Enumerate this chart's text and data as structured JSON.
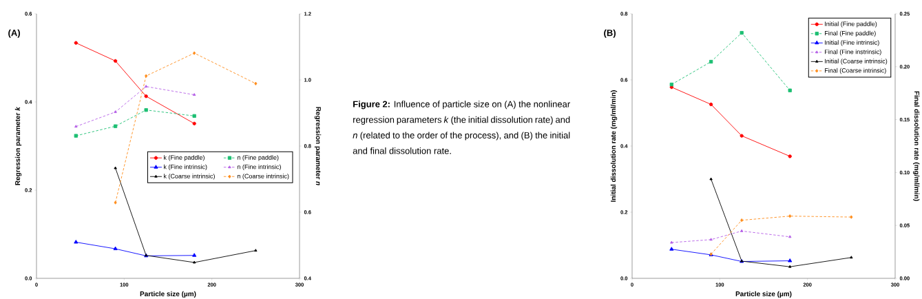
{
  "chart_data": [
    {
      "type": "line",
      "annotations": [
        "(A)"
      ],
      "xlabel": "Particle size (µm)",
      "ylabel": "Regression parameter *k*",
      "y2label": "Regression parameter *n*",
      "xlim": [
        0,
        300
      ],
      "xticks": [
        0,
        100,
        200,
        300
      ],
      "ylim": [
        0,
        0.6
      ],
      "yticks": [
        {
          "value": 0,
          "label": "0.0"
        },
        {
          "value": 0.2,
          "label": "0.2"
        },
        {
          "value": 0.4,
          "label": "0.4"
        },
        {
          "value": 0.6,
          "label": "0.6"
        }
      ],
      "y2lim": [
        0.4,
        1.2
      ],
      "y2ticks": [
        {
          "value": 0.4,
          "label": "0.4"
        },
        {
          "value": 0.6,
          "label": "0.6"
        },
        {
          "value": 0.8,
          "label": "0.8"
        },
        {
          "value": 1.0,
          "label": "1.0"
        },
        {
          "value": 1.2,
          "label": "1.2"
        }
      ],
      "legend": "right",
      "grid": false,
      "series": [
        {
          "name": "k (Fine paddle)",
          "color": "#ff0000",
          "marker": "circle",
          "line_style": "solid",
          "x": [
            45,
            90,
            125,
            180
          ],
          "values": [
            0.534,
            0.493,
            0.413,
            0.351
          ]
        },
        {
          "name": "n (Fine paddle)",
          "color": "#1dbf73",
          "marker": "square",
          "line_style": "dashed",
          "axis": "y2",
          "x": [
            45,
            90,
            125,
            180
          ],
          "values": [
            0.831,
            0.86,
            0.909,
            0.891
          ]
        },
        {
          "name": "k (Fine intrinsic)",
          "color": "#0000ff",
          "marker": "triangle",
          "line_style": "solid",
          "x": [
            45,
            90,
            125,
            180
          ],
          "values": [
            0.082,
            0.067,
            0.051,
            0.052
          ]
        },
        {
          "name": "n (Fine intrinsic)",
          "color": "#b45ee6",
          "marker": "triangle_down",
          "line_style": "dashed",
          "axis": "y2",
          "x": [
            45,
            90,
            125,
            180
          ],
          "values": [
            0.859,
            0.903,
            0.98,
            0.955
          ]
        },
        {
          "name": "k (Coarse intrinsic)",
          "color": "#000000",
          "marker": "triangle_down",
          "line_style": "solid",
          "x": [
            90,
            125,
            180,
            250
          ],
          "values": [
            0.25,
            0.052,
            0.036,
            0.063
          ]
        },
        {
          "name": "n (Coarse intrinsic)",
          "color": "#ff8c1a",
          "marker": "diamond",
          "line_style": "dashed",
          "axis": "y2",
          "x": [
            90,
            125,
            180,
            250
          ],
          "values": [
            0.629,
            1.012,
            1.081,
            0.989
          ]
        }
      ]
    },
    {
      "type": "other",
      "annotations": [
        "**Figure 2:** Influence of particle size on (A) the nonlinear regression parameters *k* (the initial dissolution rate) and *n* (related to the order of the process), and (B) the initial and final dissolution rate."
      ]
    },
    {
      "type": "line",
      "annotations": [
        "(B)"
      ],
      "xlabel": "Particle size (µm)",
      "ylabel": "Initial dissolution rate (mg/ml/min)",
      "y2label": "Final dissolution rate (mg/ml/min)",
      "xlim": [
        0,
        300
      ],
      "xticks": [
        0,
        100,
        200,
        300
      ],
      "ylim": [
        0,
        0.8
      ],
      "yticks": [
        {
          "value": 0,
          "label": "0.0"
        },
        {
          "value": 0.2,
          "label": "0.2"
        },
        {
          "value": 0.4,
          "label": "0.4"
        },
        {
          "value": 0.6,
          "label": "0.6"
        },
        {
          "value": 0.8,
          "label": "0.8"
        }
      ],
      "y2lim": [
        0,
        0.25
      ],
      "y2ticks": [
        {
          "value": 0,
          "label": "0.00"
        },
        {
          "value": 0.05,
          "label": "0.05"
        },
        {
          "value": 0.1,
          "label": "0.10"
        },
        {
          "value": 0.15,
          "label": "0.15"
        },
        {
          "value": 0.2,
          "label": "0.20"
        },
        {
          "value": 0.25,
          "label": "0.25"
        }
      ],
      "legend": "top right",
      "grid": false,
      "series": [
        {
          "name": "Initial (Fine paddle)",
          "color": "#ff0000",
          "marker": "circle",
          "line_style": "solid",
          "x": [
            45,
            90,
            125,
            180
          ],
          "values": [
            0.578,
            0.526,
            0.431,
            0.369
          ]
        },
        {
          "name": "Final (Fine paddle)",
          "color": "#1dbf73",
          "marker": "square",
          "line_style": "dashed",
          "axis": "y2",
          "x": [
            45,
            90,
            125,
            180
          ],
          "values": [
            0.1832,
            0.2047,
            0.232,
            0.1776
          ]
        },
        {
          "name": "Initial (Fine intrinsic)",
          "color": "#0000ff",
          "marker": "triangle",
          "line_style": "solid",
          "x": [
            45,
            90,
            125,
            180
          ],
          "values": [
            0.088,
            0.071,
            0.051,
            0.053
          ]
        },
        {
          "name": "Final (Fine instrinsic)",
          "color": "#b45ee6",
          "marker": "triangle_down",
          "line_style": "dashed",
          "axis": "y2",
          "x": [
            45,
            90,
            125,
            180
          ],
          "values": [
            0.0338,
            0.0366,
            0.0447,
            0.0392
          ]
        },
        {
          "name": "Initial (Coarse intrinsic)",
          "color": "#000000",
          "marker": "triangle_down",
          "line_style": "solid",
          "x": [
            90,
            125,
            180,
            250
          ],
          "values": [
            0.3,
            0.052,
            0.035,
            0.063
          ]
        },
        {
          "name": "Final (Coarse intrinsic)",
          "color": "#ff8c1a",
          "marker": "diamond",
          "line_style": "dashed",
          "axis": "y2",
          "x": [
            90,
            125,
            180,
            250
          ],
          "values": [
            0.0228,
            0.0549,
            0.0588,
            0.0579
          ]
        }
      ]
    }
  ]
}
